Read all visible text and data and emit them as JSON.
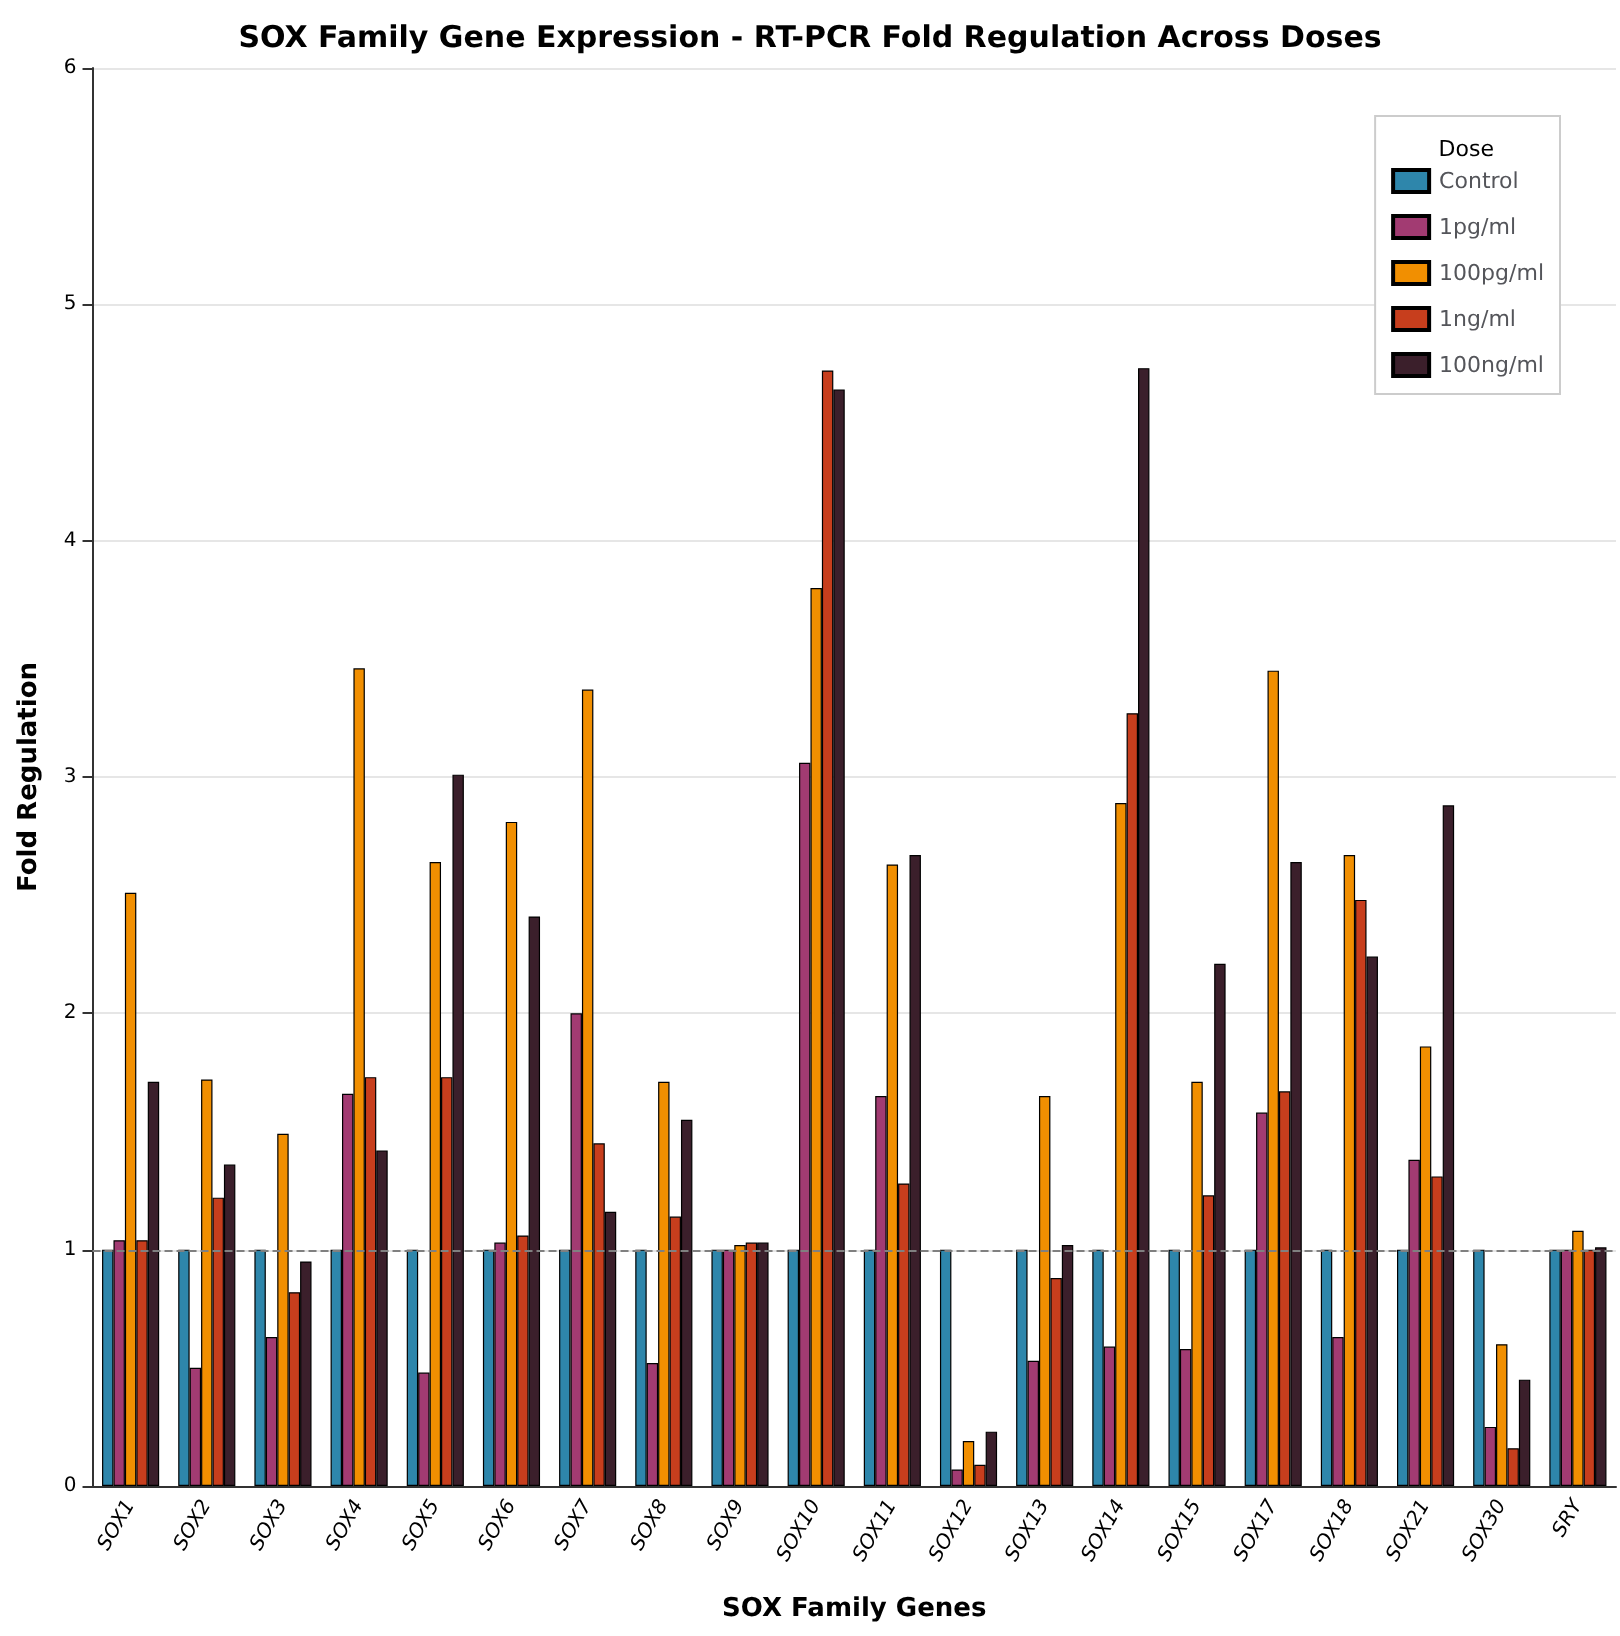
{
  "chart_data": {
    "type": "bar",
    "title": "SOX Family Gene Expression - RT-PCR Fold Regulation Across Doses",
    "xlabel": "SOX Family Genes",
    "ylabel": "Fold Regulation",
    "legend_title": "Dose",
    "categories": [
      "SOX1",
      "SOX2",
      "SOX3",
      "SOX4",
      "SOX5",
      "SOX6",
      "SOX7",
      "SOX8",
      "SOX9",
      "SOX10",
      "SOX11",
      "SOX12",
      "SOX13",
      "SOX14",
      "SOX15",
      "SOX17",
      "SOX18",
      "SOX21",
      "SOX30",
      "SRY"
    ],
    "series": [
      {
        "name": "Control",
        "color": "#2e86ab",
        "values": [
          1,
          1,
          1,
          1,
          1,
          1,
          1,
          1,
          1,
          1,
          1,
          1,
          1,
          1,
          1,
          1,
          1,
          1,
          1,
          1
        ]
      },
      {
        "name": "1pg/ml",
        "color": "#a23b72",
        "values": [
          1.04,
          0.5,
          0.63,
          1.66,
          0.48,
          1.03,
          2.0,
          0.52,
          1.0,
          3.06,
          1.65,
          0.07,
          0.53,
          0.59,
          0.58,
          1.58,
          0.63,
          1.38,
          0.25,
          1.0
        ]
      },
      {
        "name": "100pg/ml",
        "color": "#f18f01",
        "values": [
          2.51,
          1.72,
          1.49,
          3.46,
          2.64,
          2.81,
          3.37,
          1.71,
          1.02,
          3.8,
          2.63,
          0.19,
          1.65,
          2.89,
          1.71,
          3.45,
          2.67,
          1.86,
          0.6,
          1.08
        ]
      },
      {
        "name": "1ng/ml",
        "color": "#c73e1d",
        "values": [
          1.04,
          1.22,
          0.82,
          1.73,
          1.73,
          1.06,
          1.45,
          1.14,
          1.03,
          4.72,
          1.28,
          0.09,
          0.88,
          3.27,
          1.23,
          1.67,
          2.48,
          1.31,
          0.16,
          1.0
        ]
      },
      {
        "name": "100ng/ml",
        "color": "#3b1f2b",
        "values": [
          1.71,
          1.36,
          0.95,
          1.42,
          3.01,
          2.41,
          1.16,
          1.55,
          1.03,
          4.64,
          2.67,
          0.23,
          1.02,
          4.73,
          2.21,
          2.64,
          2.24,
          2.88,
          0.45,
          1.01
        ]
      }
    ],
    "ylim": [
      0,
      6
    ],
    "yticks": [
      0,
      1,
      2,
      3,
      4,
      5,
      6
    ],
    "grid": "y",
    "legend": "top right",
    "ref_lines": [
      {
        "axis": "y",
        "value": 1,
        "color": "#808080",
        "line_style": "dashed"
      }
    ]
  }
}
